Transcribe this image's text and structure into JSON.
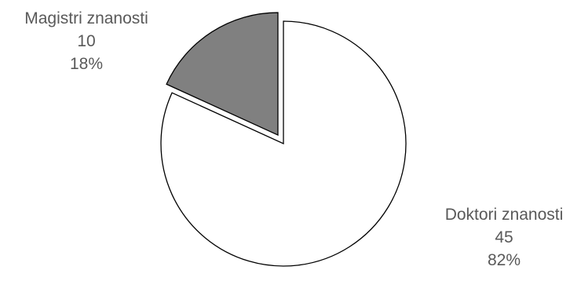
{
  "chart_data": {
    "type": "pie",
    "title": "",
    "slices": [
      {
        "label": "Doktori znanosti",
        "value": 45,
        "percent": "82%",
        "color": "#ffffff",
        "exploded": false
      },
      {
        "label": "Magistri znanosti",
        "value": 10,
        "percent": "18%",
        "color": "#808080",
        "exploded": true
      }
    ],
    "stroke_color": "#000000",
    "label_color": "#595959",
    "legend": "none"
  }
}
